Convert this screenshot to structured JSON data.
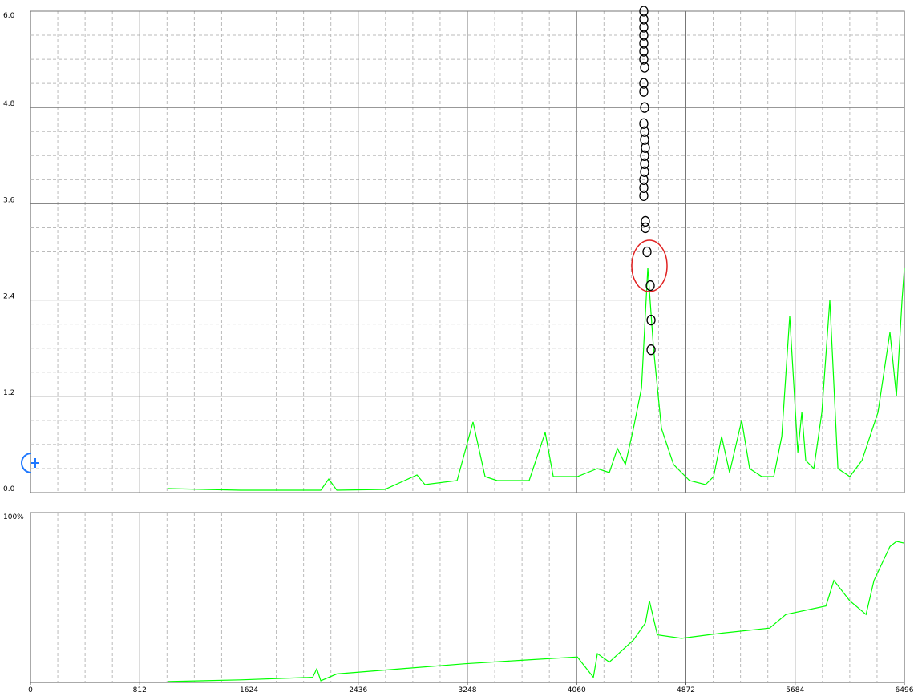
{
  "chart_data": [
    {
      "type": "line",
      "xlim": [
        0,
        6496
      ],
      "ylim": [
        0,
        6
      ],
      "yticks": [
        {
          "value": 0,
          "label": "0.0"
        },
        1.2,
        2.4,
        3.6,
        4.8,
        {
          "value": 6,
          "label": "6.0"
        }
      ],
      "grid": true,
      "series": [
        {
          "color": "#00ff00",
          "x": [
            1025,
            1562,
            2158,
            2217,
            2277,
            2634,
            2873,
            2932,
            3171,
            3290,
            3379,
            3469,
            3707,
            3826,
            3886,
            4065,
            4214,
            4303,
            4363,
            4422,
            4482,
            4542,
            4589,
            4631,
            4690,
            4780,
            4899,
            5018,
            5078,
            5138,
            5197,
            5287,
            5346,
            5436,
            5525,
            5585,
            5644,
            5704,
            5734,
            5763,
            5823,
            5883,
            5942,
            6002,
            6091,
            6181,
            6300,
            6389,
            6437,
            6479,
            6496
          ],
          "values": [
            0.05,
            0.03,
            0.03,
            0.17,
            0.03,
            0.04,
            0.22,
            0.1,
            0.15,
            0.88,
            0.2,
            0.15,
            0.15,
            0.75,
            0.2,
            0.2,
            0.3,
            0.25,
            0.55,
            0.35,
            0.8,
            1.3,
            2.8,
            1.8,
            0.8,
            0.35,
            0.15,
            0.1,
            0.2,
            0.7,
            0.25,
            0.9,
            0.3,
            0.2,
            0.2,
            0.7,
            2.2,
            0.5,
            1.0,
            0.4,
            0.3,
            1.0,
            2.4,
            0.3,
            0.2,
            0.4,
            1.0,
            2.0,
            1.2,
            2.4,
            2.8
          ]
        }
      ],
      "markers": {
        "color": "#000000",
        "x": [
          4613,
          4613,
          4607,
          4583,
          4571,
          4571,
          4559,
          4559,
          4559,
          4565,
          4565,
          4565,
          4571,
          4565,
          4565,
          4559,
          4565,
          4559,
          4559,
          4565,
          4559,
          4559,
          4559,
          4559,
          4559,
          4559,
          4559
        ],
        "y": [
          1.78,
          2.15,
          2.58,
          3.0,
          3.3,
          3.38,
          3.7,
          3.8,
          3.9,
          4.0,
          4.1,
          4.2,
          4.3,
          4.4,
          4.5,
          4.6,
          4.8,
          5.0,
          5.1,
          5.3,
          5.4,
          5.5,
          5.6,
          5.7,
          5.8,
          5.9,
          6.0
        ]
      }
    },
    {
      "type": "line",
      "xlim": [
        0,
        6496
      ],
      "xticks": [
        0,
        812,
        1624,
        2436,
        3248,
        4060,
        4872,
        5684,
        6496
      ],
      "ylim": [
        0,
        100
      ],
      "yticks": [
        {
          "value": 100,
          "label": "100%"
        }
      ],
      "grid": true,
      "series": [
        {
          "color": "#00ff00",
          "x": [
            1025,
            1562,
            2098,
            2128,
            2158,
            2277,
            2753,
            3230,
            3648,
            4065,
            4184,
            4214,
            4303,
            4482,
            4571,
            4601,
            4660,
            4839,
            5138,
            5495,
            5615,
            5913,
            5972,
            6091,
            6211,
            6270,
            6389,
            6437,
            6496
          ],
          "values": [
            0.5,
            1.5,
            3,
            8,
            1,
            5,
            8,
            11,
            13,
            15,
            3,
            17,
            12,
            25,
            35,
            48,
            28,
            26,
            29,
            32,
            40,
            45,
            60,
            48,
            40,
            60,
            80,
            83,
            82
          ]
        }
      ]
    }
  ]
}
